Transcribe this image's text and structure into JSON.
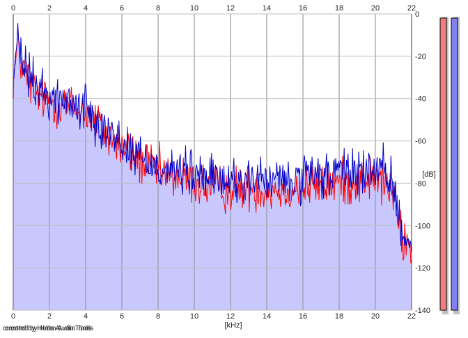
{
  "chart_data": {
    "type": "area",
    "title": "",
    "xlabel": "[kHz]",
    "ylabel": "[dB]",
    "xlim": [
      0,
      22
    ],
    "ylim": [
      -140,
      0
    ],
    "x_ticks": [
      0,
      2,
      4,
      6,
      8,
      10,
      12,
      14,
      16,
      18,
      20,
      22
    ],
    "y_ticks": [
      0,
      -20,
      -40,
      -60,
      -80,
      -100,
      -120,
      -140
    ],
    "grid": true,
    "series": [
      {
        "color": "#ff0000",
        "x": [
          0,
          0.1,
          0.2,
          0.3,
          0.4,
          0.5,
          0.6,
          0.8,
          1,
          1.5,
          2,
          2.5,
          3,
          3.5,
          4,
          4.5,
          5,
          5.5,
          6,
          6.5,
          7,
          7.5,
          8,
          8.5,
          9,
          9.5,
          10,
          11,
          12,
          13,
          14,
          15,
          16,
          17,
          18,
          19,
          20,
          20.5,
          20.8,
          21,
          21.2,
          21.4,
          21.6,
          21.8,
          22
        ],
        "y": [
          -30,
          -26,
          -18,
          -13,
          -22,
          -25,
          -27,
          -30,
          -34,
          -39,
          -41,
          -42,
          -44,
          -45,
          -46,
          -50,
          -55,
          -60,
          -63,
          -66,
          -70,
          -72,
          -74,
          -76,
          -77,
          -78,
          -80,
          -82,
          -83,
          -82,
          -83,
          -83,
          -82,
          -81,
          -80,
          -79,
          -78,
          -80,
          -82,
          -86,
          -95,
          -103,
          -108,
          -110,
          -111
        ],
        "noise": 5.5
      },
      {
        "color": "#0000cc",
        "x": [
          0,
          0.1,
          0.2,
          0.3,
          0.4,
          0.5,
          0.6,
          0.8,
          1,
          1.5,
          2,
          2.5,
          3,
          3.5,
          4,
          4.5,
          5,
          5.5,
          6,
          6.5,
          7,
          7.5,
          8,
          8.5,
          9,
          9.5,
          10,
          11,
          12,
          13,
          14,
          15,
          16,
          17,
          18,
          19,
          20,
          20.5,
          20.8,
          21,
          21.2,
          21.4,
          21.6,
          21.8,
          22
        ],
        "y": [
          -29,
          -25,
          -17,
          -11,
          -20,
          -23,
          -25,
          -28,
          -32,
          -37,
          -39,
          -40,
          -42,
          -43,
          -44,
          -48,
          -53,
          -58,
          -61,
          -64,
          -68,
          -70,
          -72,
          -73,
          -74,
          -75,
          -76,
          -78,
          -79,
          -78,
          -79,
          -79,
          -78,
          -77,
          -75,
          -74,
          -74,
          -76,
          -78,
          -82,
          -91,
          -99,
          -104,
          -106,
          -107
        ],
        "noise": 5.5
      }
    ],
    "level_bars": [
      {
        "color": "#f08080",
        "value": 0
      },
      {
        "color": "#8080f0",
        "value": 0
      }
    ],
    "fill_color": "#c8c8ff"
  },
  "credit_lines": [
    "created by Hobo Audio Tools",
    "created by Hobo Audio Tools"
  ]
}
